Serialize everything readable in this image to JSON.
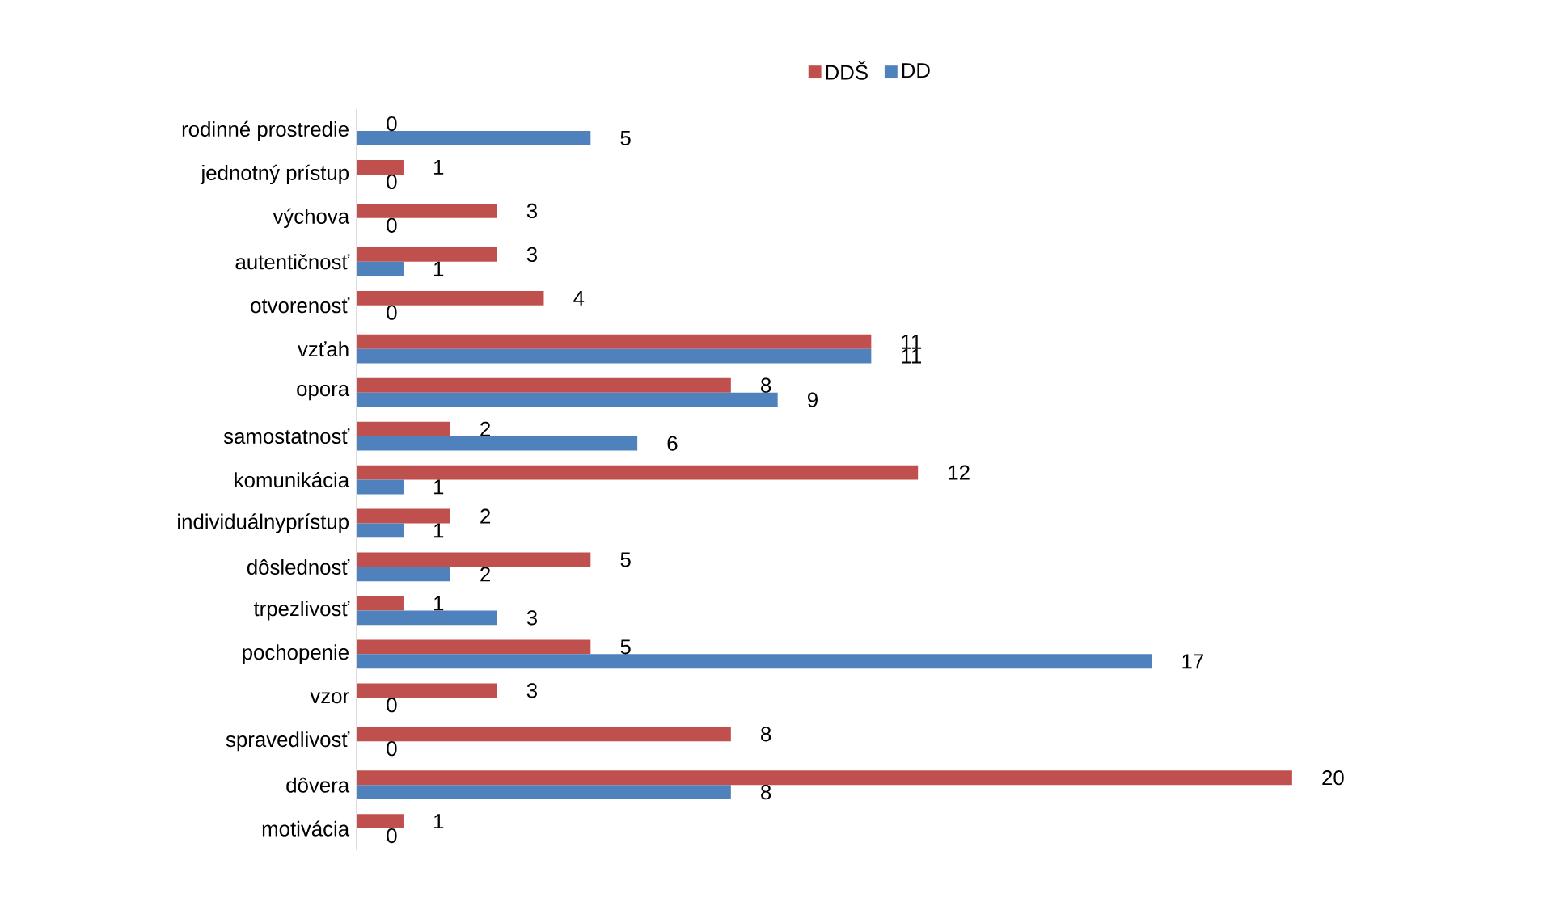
{
  "chart_data": {
    "type": "bar",
    "orientation": "horizontal",
    "legend": "top",
    "data_labels": true,
    "categories": [
      "rodinné prostredie",
      "jednotný prístup",
      "výchova",
      "autentičnosť",
      "otvorenosť",
      "vzťah",
      "opora",
      "samostatnosť",
      "komunikácia",
      "individuálnyprístup",
      "dôslednosť",
      "trpezlivosť",
      "pochopenie",
      "vzor",
      "spravedlivosť",
      "dôvera",
      "motivácia"
    ],
    "series": [
      {
        "name": "DDŠ",
        "color": "#c0504d",
        "values": [
          0,
          1,
          3,
          3,
          4,
          11,
          8,
          2,
          12,
          2,
          5,
          1,
          5,
          3,
          8,
          20,
          1
        ]
      },
      {
        "name": "DD",
        "color": "#4f81bd",
        "values": [
          5,
          0,
          0,
          1,
          0,
          11,
          9,
          6,
          1,
          1,
          2,
          3,
          17,
          0,
          0,
          8,
          0
        ]
      }
    ]
  }
}
